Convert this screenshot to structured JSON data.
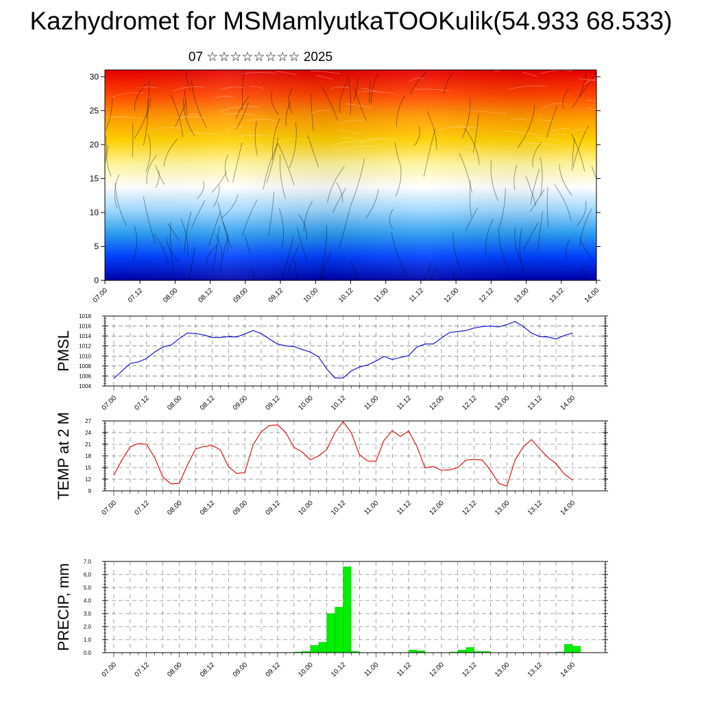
{
  "title": "Kazhydromet for MSMamlyutkaTOOKulik(54.933 68.533)",
  "subtitle": "07 ☆☆☆☆☆☆☆☆ 2025",
  "time_ticks": [
    "07.00",
    "07.12",
    "08.00",
    "08.12",
    "09.00",
    "09.12",
    "10.00",
    "10.12",
    "11.00",
    "11.12",
    "12.00",
    "12.12",
    "13.00",
    "13.12",
    "14.00"
  ],
  "colors": {
    "pmsl": "#0000cc",
    "temp": "#dd0000",
    "precip": "#00ee00",
    "grid": "#000000"
  },
  "chart_data": [
    {
      "type": "heatmap",
      "title": "",
      "xlabel": "",
      "ylabel": "",
      "y_ticks": [
        "0",
        "5",
        "10",
        "15",
        "20",
        "25",
        "30"
      ],
      "ylim": [
        0,
        31
      ],
      "x_ticks": [
        "07.00",
        "07.12",
        "08.00",
        "08.12",
        "09.00",
        "09.12",
        "10.00",
        "10.12",
        "11.00",
        "11.12",
        "12.00",
        "12.12",
        "13.00",
        "13.12",
        "14.00"
      ],
      "colormap": [
        "#0000a8",
        "#0040ff",
        "#2a9cf0",
        "#9fd8ff",
        "#ffffff",
        "#fff59a",
        "#ffd000",
        "#ff9a00",
        "#ff4000",
        "#e60000"
      ],
      "overlay": "wind streamlines"
    },
    {
      "type": "line",
      "ylabel": "PMSL",
      "ylim": [
        1004,
        1018
      ],
      "y_ticks": [
        "1004",
        "1006",
        "1008",
        "1010",
        "1012",
        "1014",
        "1016",
        "1018"
      ],
      "x_ticks": [
        "07.00",
        "07.12",
        "08.00",
        "08.12",
        "09.00",
        "09.12",
        "10.00",
        "10.12",
        "11.00",
        "11.12",
        "12.00",
        "12.12",
        "13.00",
        "13.12",
        "14.00"
      ],
      "x_step_hours": 3,
      "series": [
        {
          "values": [
            1005.5,
            1007.0,
            1008.5,
            1008.8,
            1009.5,
            1010.8,
            1011.8,
            1012.2,
            1013.5,
            1014.6,
            1014.5,
            1014.2,
            1013.7,
            1013.7,
            1013.9,
            1013.8,
            1014.4,
            1015.1,
            1014.5,
            1013.4,
            1012.4,
            1012.0,
            1011.9,
            1011.3,
            1010.8,
            1009.8,
            1007.4,
            1005.6,
            1005.6,
            1007.0,
            1007.8,
            1008.2,
            1009.0,
            1009.9,
            1009.3,
            1009.7,
            1010.1,
            1011.8,
            1012.4,
            1012.4,
            1013.6,
            1014.7,
            1014.9,
            1015.1,
            1015.6,
            1015.9,
            1016.0,
            1015.8,
            1016.3,
            1016.9,
            1015.9,
            1014.6,
            1013.9,
            1013.8,
            1013.4,
            1014.1,
            1014.6
          ]
        }
      ]
    },
    {
      "type": "line",
      "ylabel": "TEMP at 2 M",
      "ylim": [
        9,
        27
      ],
      "y_ticks": [
        "9",
        "12",
        "15",
        "18",
        "21",
        "24",
        "27"
      ],
      "x_ticks": [
        "07.00",
        "07.12",
        "08.00",
        "08.12",
        "09.00",
        "09.12",
        "10.00",
        "10.12",
        "11.00",
        "11.12",
        "12.00",
        "12.12",
        "13.00",
        "13.12",
        "14.00"
      ],
      "x_step_hours": 3,
      "series": [
        {
          "values": [
            13.0,
            17.0,
            20.3,
            21.2,
            21.0,
            17.5,
            12.5,
            10.8,
            10.9,
            15.7,
            19.8,
            20.4,
            20.7,
            19.6,
            15.2,
            13.5,
            13.7,
            20.8,
            24.2,
            25.8,
            26.0,
            24.0,
            20.2,
            19.0,
            17.0,
            18.0,
            19.6,
            24.0,
            26.8,
            24.0,
            18.3,
            16.7,
            16.6,
            22.0,
            24.5,
            23.0,
            24.4,
            20.5,
            14.9,
            15.3,
            14.3,
            14.4,
            15.0,
            16.9,
            17.1,
            16.9,
            14.3,
            10.9,
            10.2,
            17.0,
            20.3,
            22.2,
            19.8,
            17.6,
            16.0,
            13.3,
            11.8
          ]
        }
      ]
    },
    {
      "type": "bar",
      "ylabel": "PRECIP, mm",
      "ylim": [
        0,
        7
      ],
      "y_ticks": [
        "0.0",
        "1.0",
        "2.0",
        "3.0",
        "4.0",
        "5.0",
        "6.0",
        "7.0"
      ],
      "x_ticks": [
        "07.00",
        "07.12",
        "08.00",
        "08.12",
        "09.00",
        "09.12",
        "10.00",
        "10.12",
        "11.00",
        "11.12",
        "12.00",
        "12.12",
        "13.00",
        "13.12",
        "14.00"
      ],
      "x_step_hours": 3,
      "values": [
        0,
        0,
        0,
        0,
        0,
        0,
        0,
        0,
        0,
        0,
        0,
        0,
        0,
        0,
        0,
        0,
        0,
        0,
        0,
        0,
        0,
        0,
        0.05,
        0.1,
        0.55,
        0.8,
        3.0,
        3.5,
        6.6,
        0.1,
        0,
        0,
        0,
        0,
        0,
        0,
        0.2,
        0.15,
        0,
        0,
        0,
        0.05,
        0.2,
        0.4,
        0.1,
        0.1,
        0,
        0,
        0,
        0,
        0,
        0,
        0,
        0,
        0.05,
        0.65,
        0.5
      ]
    }
  ]
}
